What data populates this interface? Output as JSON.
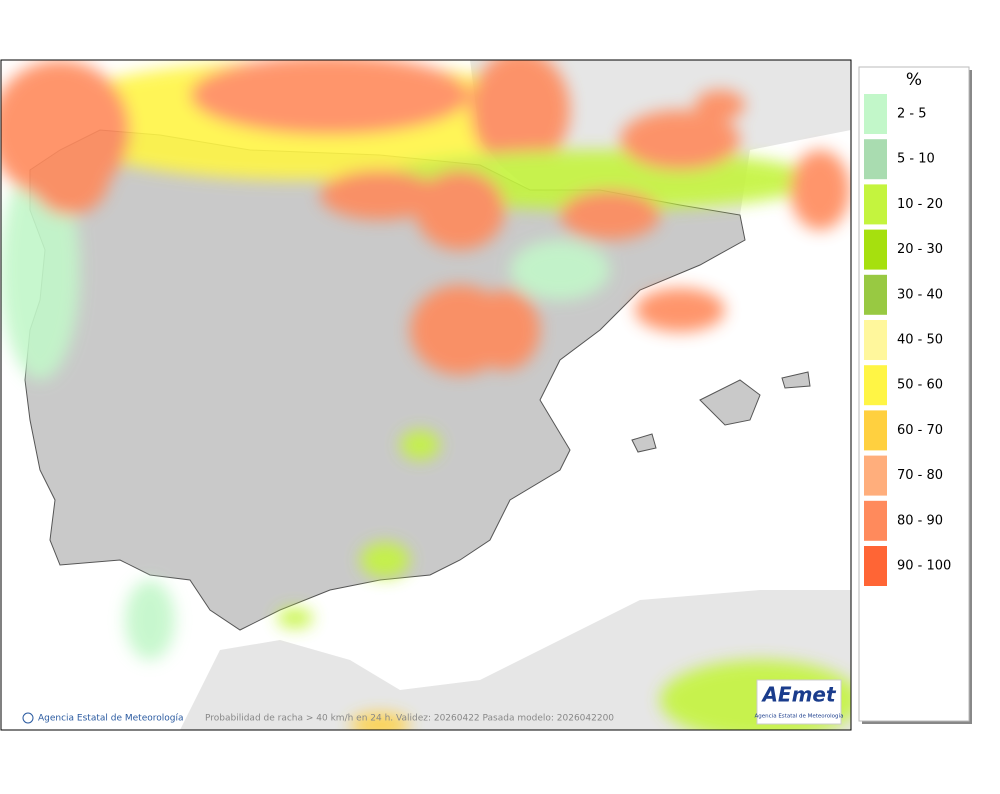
{
  "legend": {
    "title": "%",
    "items": [
      {
        "label": "2 - 5",
        "color": "#c2f7c9"
      },
      {
        "label": "5 - 10",
        "color": "#a9dcb0"
      },
      {
        "label": "10 - 20",
        "color": "#c4f43e"
      },
      {
        "label": "20 - 30",
        "color": "#a6e00e"
      },
      {
        "label": "30 - 40",
        "color": "#98c942"
      },
      {
        "label": "40 - 50",
        "color": "#fff79c"
      },
      {
        "label": "50 - 60",
        "color": "#fff545"
      },
      {
        "label": "60 - 70",
        "color": "#ffd03f"
      },
      {
        "label": "70 - 80",
        "color": "#ffae7c"
      },
      {
        "label": "80 - 90",
        "color": "#ff8a5c"
      },
      {
        "label": "90 - 100",
        "color": "#ff6535"
      }
    ]
  },
  "footer": {
    "credit": "Agencia Estatal de Meteorología",
    "caption": "Probabilidad de racha > 40 km/h en 24 h. Validez: 20260422 Pasada modelo: 2026042200"
  },
  "logo": {
    "name": "AEmet",
    "subtitle": "Agencia Estatal de Meteorología"
  }
}
